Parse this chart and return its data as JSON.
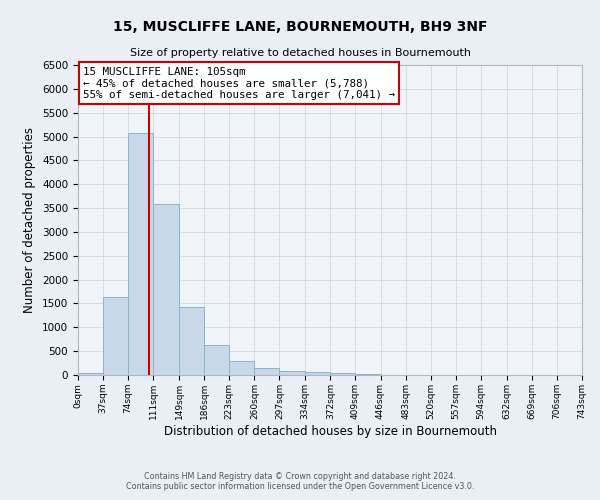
{
  "title": "15, MUSCLIFFE LANE, BOURNEMOUTH, BH9 3NF",
  "subtitle": "Size of property relative to detached houses in Bournemouth",
  "xlabel": "Distribution of detached houses by size in Bournemouth",
  "ylabel": "Number of detached properties",
  "footer_line1": "Contains HM Land Registry data © Crown copyright and database right 2024.",
  "footer_line2": "Contains public sector information licensed under the Open Government Licence v3.0.",
  "bin_edges": [
    0,
    37,
    74,
    111,
    149,
    186,
    223,
    260,
    297,
    334,
    372,
    409,
    446,
    483,
    520,
    557,
    594,
    632,
    669,
    706,
    743
  ],
  "bar_heights": [
    50,
    1630,
    5080,
    3590,
    1430,
    620,
    300,
    150,
    80,
    55,
    40,
    30,
    0,
    0,
    0,
    0,
    0,
    0,
    0,
    0
  ],
  "bar_color": "#c8d8e8",
  "bar_edge_color": "#8ab4cc",
  "vline_color": "#cc0000",
  "vline_x": 105,
  "annotation_line1": "15 MUSCLIFFE LANE: 105sqm",
  "annotation_line2": "← 45% of detached houses are smaller (5,788)",
  "annotation_line3": "55% of semi-detached houses are larger (7,041) →",
  "annotation_box_color": "#ffffff",
  "annotation_box_edge": "#cc0000",
  "ylim": [
    0,
    6500
  ],
  "yticks": [
    0,
    500,
    1000,
    1500,
    2000,
    2500,
    3000,
    3500,
    4000,
    4500,
    5000,
    5500,
    6000,
    6500
  ],
  "bg_color": "#eaeff5",
  "plot_bg_color": "#f0f4f8",
  "grid_color": "#d0d8e0"
}
